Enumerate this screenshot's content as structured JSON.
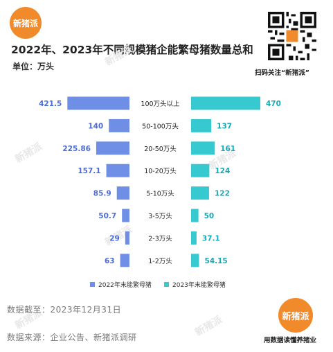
{
  "brand": {
    "logo_text": "新猪派",
    "qr_caption": "扫码关注“新猪派”",
    "slogan": "用数据读懂养猪业"
  },
  "footer": {
    "date": "数据截至：2023年12月31日",
    "source": "数据来源：企业公告、新猪派调研"
  },
  "colors": {
    "series_2022": "#6f8ee6",
    "series_2023": "#36c9cf"
  },
  "chart_data": {
    "type": "bar",
    "orientation": "horizontal-butterfly",
    "title": "2022年、2023年不同规模猪企能繁母猪数量总和",
    "unit_label": "单位：万头",
    "categories": [
      "100万头以上",
      "50-100万头",
      "20-50万头",
      "10-20万头",
      "5-10万头",
      "3-5万头",
      "2-3万头",
      "1-2万头"
    ],
    "series": [
      {
        "name": "2022年末能繁母猪",
        "values": [
          421.5,
          140,
          225.86,
          157.1,
          85.9,
          50.7,
          29,
          63
        ],
        "labels": [
          "421.5",
          "140",
          "225.86",
          "157.1",
          "85.9",
          "50.7",
          "29",
          "63"
        ]
      },
      {
        "name": "2023年末能繁母猪",
        "values": [
          470,
          137,
          161,
          124,
          122,
          50,
          37.1,
          54.15
        ],
        "labels": [
          "470",
          "137",
          "161",
          "124",
          "122",
          "50",
          "37.1",
          "54.15"
        ]
      }
    ],
    "legend_position": "bottom",
    "grid": false
  }
}
